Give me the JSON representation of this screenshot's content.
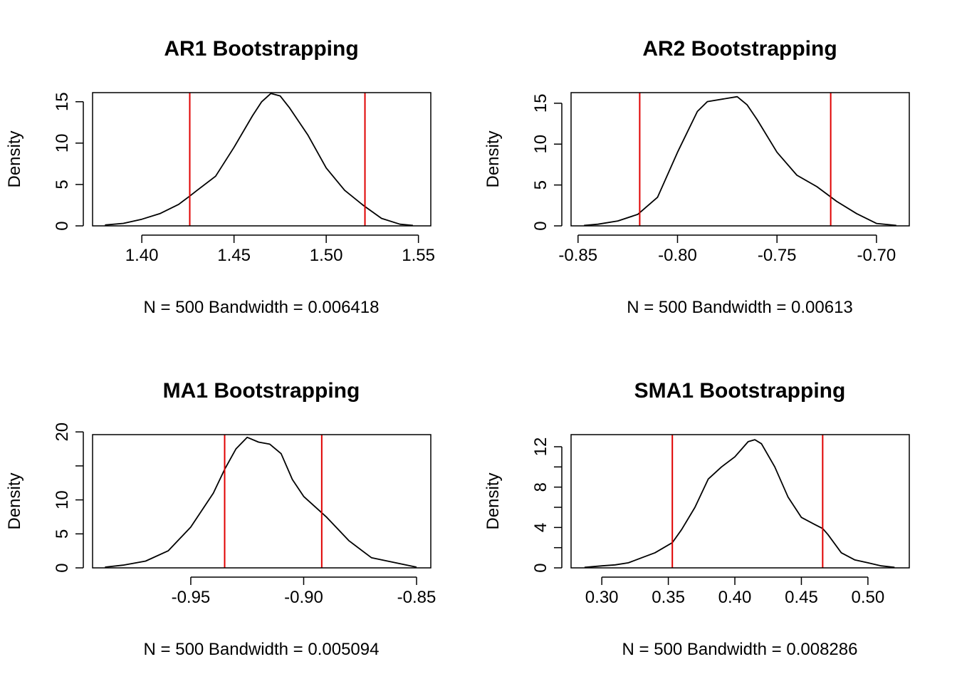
{
  "colors": {
    "density_line": "#000000",
    "ci_line": "#E00000",
    "zero_line": "#BEBEBE",
    "frame": "#000000",
    "background": "#FFFFFF"
  },
  "chart_data": [
    {
      "type": "line",
      "title": "AR1 Bootstrapping",
      "ylabel": "Density",
      "xlabel": "N = 500   Bandwidth = 0.006418",
      "xlim": [
        1.3733,
        1.5567
      ],
      "ylim": [
        0,
        16.1
      ],
      "xticks": [
        1.4,
        1.45,
        1.5,
        1.55
      ],
      "xtick_labels": [
        "1.40",
        "1.45",
        "1.50",
        "1.55"
      ],
      "yticks": [
        0,
        5,
        10,
        15
      ],
      "ytick_labels": [
        "0",
        "5",
        "10",
        "15"
      ],
      "ci_lines": [
        1.426,
        1.521
      ],
      "series": [
        {
          "x": [
            1.38,
            1.39,
            1.4,
            1.41,
            1.42,
            1.426,
            1.43,
            1.44,
            1.45,
            1.46,
            1.465,
            1.47,
            1.475,
            1.48,
            1.49,
            1.5,
            1.51,
            1.52,
            1.53,
            1.54,
            1.547
          ],
          "y": [
            0.1,
            0.3,
            0.8,
            1.5,
            2.6,
            3.6,
            4.3,
            6.0,
            9.5,
            13.3,
            15.0,
            16.0,
            15.7,
            14.3,
            11.0,
            7.0,
            4.3,
            2.5,
            0.9,
            0.2,
            0.05
          ]
        }
      ]
    },
    {
      "type": "line",
      "title": "AR2 Bootstrapping",
      "ylabel": "Density",
      "xlabel": "N = 500   Bandwidth = 0.00613",
      "xlim": [
        -0.8535,
        -0.6835
      ],
      "ylim": [
        0,
        16.3
      ],
      "xticks": [
        -0.85,
        -0.8,
        -0.75,
        -0.7
      ],
      "xtick_labels": [
        "-0.85",
        "-0.80",
        "-0.75",
        "-0.70"
      ],
      "yticks": [
        0,
        5,
        10,
        15
      ],
      "ytick_labels": [
        "0",
        "5",
        "10",
        "15"
      ],
      "ci_lines": [
        -0.819,
        -0.723
      ],
      "series": [
        {
          "x": [
            -0.847,
            -0.84,
            -0.83,
            -0.82,
            -0.81,
            -0.8,
            -0.79,
            -0.785,
            -0.775,
            -0.77,
            -0.765,
            -0.76,
            -0.75,
            -0.74,
            -0.73,
            -0.72,
            -0.71,
            -0.7,
            -0.69
          ],
          "y": [
            0.05,
            0.2,
            0.6,
            1.4,
            3.5,
            9.0,
            14.0,
            15.2,
            15.6,
            15.8,
            14.8,
            13.0,
            9.0,
            6.2,
            4.8,
            3.0,
            1.5,
            0.3,
            0.05
          ]
        }
      ]
    },
    {
      "type": "line",
      "title": "MA1 Bootstrapping",
      "ylabel": "Density",
      "xlabel": "N = 500   Bandwidth = 0.005094",
      "xlim": [
        -0.9935,
        -0.8437
      ],
      "ylim": [
        0,
        19.6
      ],
      "xticks": [
        -0.95,
        -0.9,
        -0.85
      ],
      "xtick_labels": [
        "-0.95",
        "-0.90",
        "-0.85"
      ],
      "yticks": [
        0,
        5,
        10,
        15,
        20
      ],
      "ytick_labels": [
        "0",
        "5",
        "10",
        "",
        "20"
      ],
      "ci_lines": [
        -0.935,
        -0.892
      ],
      "series": [
        {
          "x": [
            -0.988,
            -0.98,
            -0.97,
            -0.96,
            -0.95,
            -0.94,
            -0.935,
            -0.93,
            -0.925,
            -0.92,
            -0.915,
            -0.91,
            -0.905,
            -0.9,
            -0.895,
            -0.89,
            -0.88,
            -0.87,
            -0.86,
            -0.85
          ],
          "y": [
            0.1,
            0.4,
            1.0,
            2.5,
            6.0,
            11.0,
            14.5,
            17.5,
            19.2,
            18.5,
            18.2,
            16.8,
            13.0,
            10.5,
            9.0,
            7.5,
            4.0,
            1.5,
            0.8,
            0.1
          ]
        }
      ]
    },
    {
      "type": "line",
      "title": "SMA1 Bootstrapping",
      "ylabel": "Density",
      "xlabel": "N = 500   Bandwidth = 0.008286",
      "xlim": [
        0.2769,
        0.5311
      ],
      "ylim": [
        0,
        13.2
      ],
      "xticks": [
        0.3,
        0.35,
        0.4,
        0.45,
        0.5
      ],
      "xtick_labels": [
        "0.30",
        "0.35",
        "0.40",
        "0.45",
        "0.50"
      ],
      "yticks": [
        0,
        2,
        4,
        6,
        8,
        10,
        12
      ],
      "ytick_labels": [
        "0",
        "",
        "4",
        "",
        "8",
        "",
        "12"
      ],
      "ci_lines": [
        0.353,
        0.466
      ],
      "series": [
        {
          "x": [
            0.287,
            0.3,
            0.31,
            0.32,
            0.33,
            0.34,
            0.353,
            0.36,
            0.37,
            0.38,
            0.39,
            0.4,
            0.41,
            0.415,
            0.42,
            0.43,
            0.44,
            0.45,
            0.46,
            0.466,
            0.47,
            0.48,
            0.49,
            0.5,
            0.51,
            0.52
          ],
          "y": [
            0.05,
            0.2,
            0.3,
            0.5,
            1.0,
            1.5,
            2.5,
            3.8,
            6.0,
            8.8,
            10.0,
            11.0,
            12.5,
            12.7,
            12.3,
            10.0,
            7.0,
            5.0,
            4.3,
            3.9,
            3.3,
            1.5,
            0.8,
            0.5,
            0.2,
            0.05
          ]
        }
      ]
    }
  ]
}
